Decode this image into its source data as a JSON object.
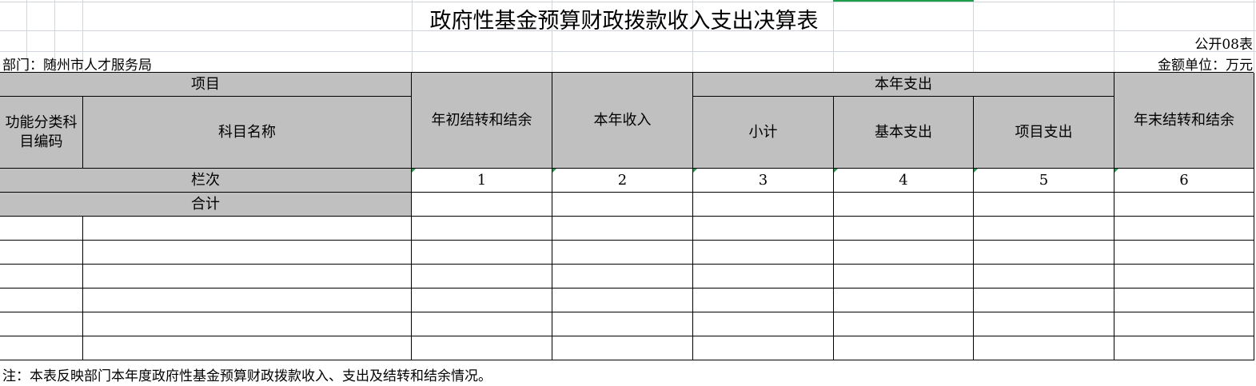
{
  "title": "政府性基金预算财政拨款收入支出决算表",
  "table_no": "公开08表",
  "department": "部门：随州市人才服务局",
  "unit": "金额单位：万元",
  "headers": {
    "project": "项目",
    "func_code": "功能分类科目编码",
    "subject_name": "科目名称",
    "opening_balance": "年初结转和结余",
    "income": "本年收入",
    "expenditure": "本年支出",
    "subtotal": "小计",
    "basic": "基本支出",
    "project_exp": "项目支出",
    "closing_balance": "年末结转和结余",
    "column_index": "栏次",
    "total": "合计"
  },
  "column_numbers": [
    "1",
    "2",
    "3",
    "4",
    "5",
    "6"
  ],
  "note": "注：本表反映部门本年度政府性基金预算财政拨款收入、支出及结转和结余情况。",
  "colors": {
    "header_fill": "#c0c0c0",
    "selection": "#1e9e4a"
  }
}
